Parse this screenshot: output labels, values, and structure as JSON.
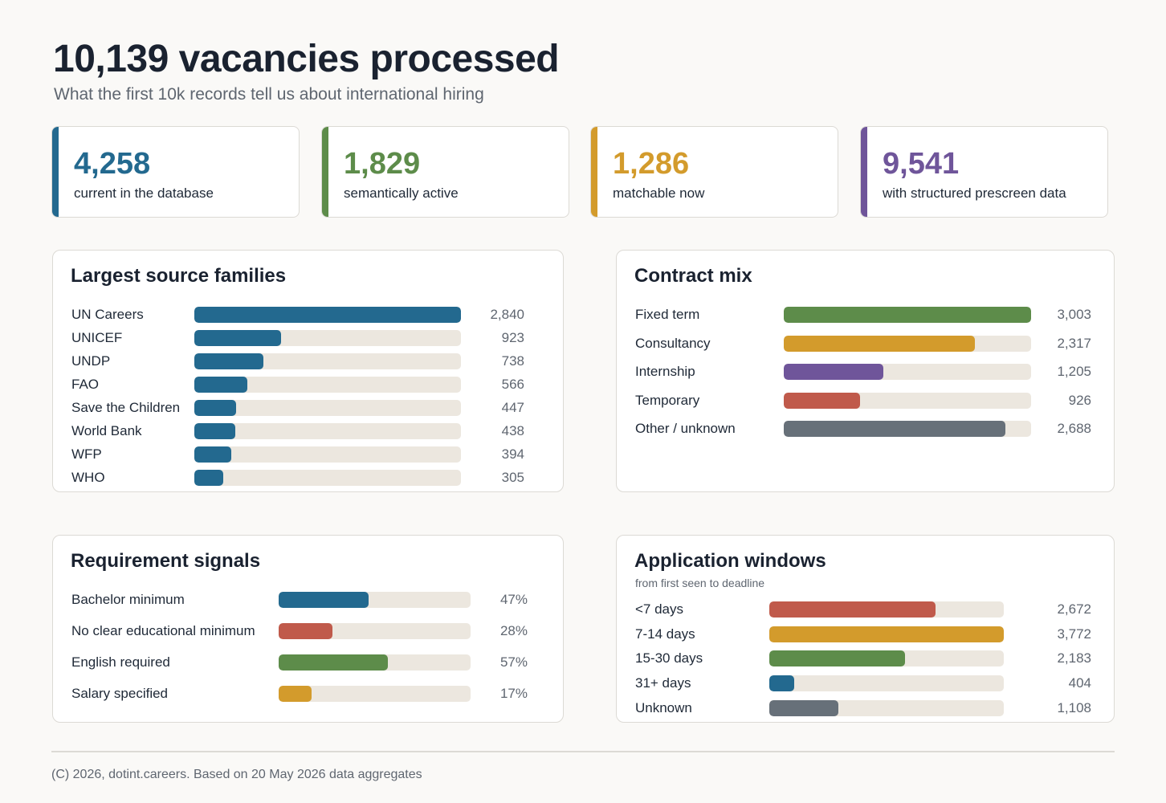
{
  "header": {
    "title": "10,139 vacancies processed",
    "subtitle": "What the first 10k records tell us about international hiring"
  },
  "kpis": [
    {
      "value": "4,258",
      "label": "current in the database",
      "color": "#23698f"
    },
    {
      "value": "1,829",
      "label": "semantically active",
      "color": "#5d8c4a"
    },
    {
      "value": "1,286",
      "label": "matchable now",
      "color": "#d39b2c"
    },
    {
      "value": "9,541",
      "label": "with structured prescreen data",
      "color": "#6f559a"
    }
  ],
  "footer": {
    "text": "(C) 2026, dotint.careers. Based on 20 May 2026 data aggregates"
  },
  "chart_data": [
    {
      "type": "bar",
      "title": "Largest source families",
      "categories": [
        "UN Careers",
        "UNICEF",
        "UNDP",
        "FAO",
        "Save the Children",
        "World Bank",
        "WFP",
        "WHO"
      ],
      "values": [
        2840,
        923,
        738,
        566,
        447,
        438,
        394,
        305
      ],
      "value_labels": [
        "2,840",
        "923",
        "738",
        "566",
        "447",
        "438",
        "394",
        "305"
      ],
      "colors": [
        "#23698f",
        "#23698f",
        "#23698f",
        "#23698f",
        "#23698f",
        "#23698f",
        "#23698f",
        "#23698f"
      ],
      "max": 2840
    },
    {
      "type": "bar",
      "title": "Contract mix",
      "categories": [
        "Fixed term",
        "Consultancy",
        "Internship",
        "Temporary",
        "Other / unknown"
      ],
      "values": [
        3003,
        2317,
        1205,
        926,
        2688
      ],
      "value_labels": [
        "3,003",
        "2,317",
        "1,205",
        "926",
        "2,688"
      ],
      "colors": [
        "#5d8c4a",
        "#d39b2c",
        "#6f559a",
        "#c05a4b",
        "#677079"
      ],
      "max": 3003
    },
    {
      "type": "bar",
      "title": "Requirement signals",
      "categories": [
        "Bachelor minimum",
        "No clear educational minimum",
        "English required",
        "Salary specified"
      ],
      "values": [
        47,
        28,
        57,
        17
      ],
      "value_labels": [
        "47%",
        "28%",
        "57%",
        "17%"
      ],
      "colors": [
        "#23698f",
        "#c05a4b",
        "#5d8c4a",
        "#d39b2c"
      ],
      "max": 100
    },
    {
      "type": "bar",
      "title": "Application windows",
      "subtitle": "from first seen to deadline",
      "categories": [
        "<7 days",
        "7-14 days",
        "15-30 days",
        "31+ days",
        "Unknown"
      ],
      "values": [
        2672,
        3772,
        2183,
        404,
        1108
      ],
      "value_labels": [
        "2,672",
        "3,772",
        "2,183",
        "404",
        "1,108"
      ],
      "colors": [
        "#c05a4b",
        "#d39b2c",
        "#5d8c4a",
        "#23698f",
        "#677079"
      ],
      "max": 3772
    }
  ]
}
